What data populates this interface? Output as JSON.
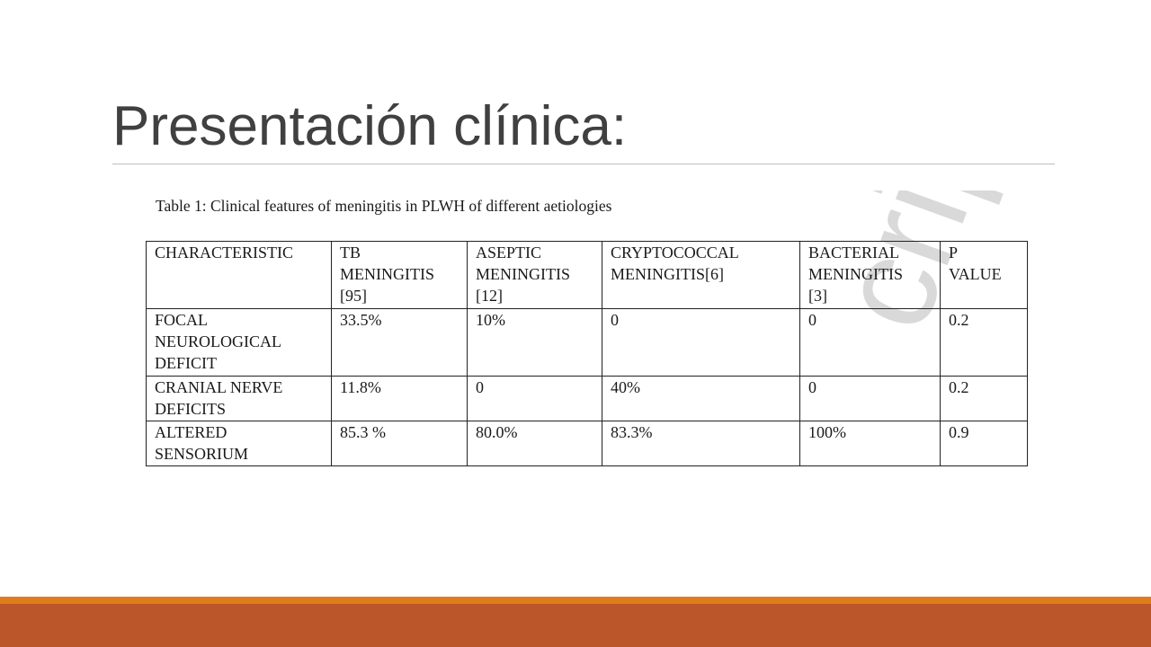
{
  "slide": {
    "title": "Presentación clínica:"
  },
  "table": {
    "caption": "Table 1: Clinical features of meningitis in PLWH of different aetiologies",
    "watermark": "cript",
    "headers": [
      "CHARACTERISTIC",
      "TB\nMENINGITIS\n[95]",
      "ASEPTIC\nMENINGITIS\n[12]",
      "CRYPTOCOCCAL\nMENINGITIS[6]",
      "BACTERIAL\nMENINGITIS\n[3]",
      "P\nVALUE"
    ],
    "rows": [
      [
        "FOCAL\nNEUROLOGICAL\nDEFICIT",
        "33.5%",
        "10%",
        "0",
        "0",
        "0.2"
      ],
      [
        "CRANIAL NERVE\nDEFICITS",
        "11.8%",
        "0",
        "40%",
        "0",
        "0.2"
      ],
      [
        "ALTERED\nSENSORIUM",
        "85.3 %",
        "80.0%",
        "83.3%",
        "100%",
        "0.9"
      ]
    ]
  },
  "colors": {
    "title_text": "#404040",
    "rule": "#bfbfbf",
    "footer_accent": "#e07d1a",
    "footer_bar": "#bb552a"
  }
}
